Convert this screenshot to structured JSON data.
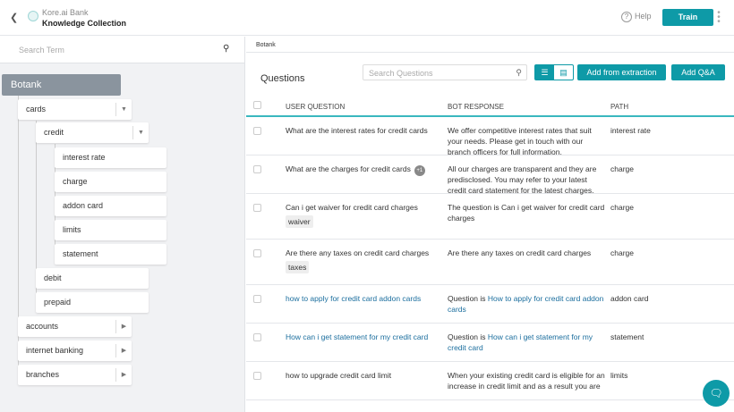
{
  "header": {
    "back_icon": "chevron-left-icon",
    "bank": "Kore.ai Bank",
    "collection": "Knowledge Collection",
    "help": "Help",
    "train": "Train"
  },
  "left": {
    "search_placeholder": "Search Term",
    "root": "Botank",
    "nodes": {
      "cards": "cards",
      "credit": "credit",
      "interest_rate": "interest rate",
      "charge": "charge",
      "addon_card": "addon card",
      "limits": "limits",
      "statement": "statement",
      "debit": "debit",
      "prepaid": "prepaid",
      "accounts": "accounts",
      "internet_banking": "internet banking",
      "branches": "branches"
    }
  },
  "main": {
    "breadcrumb": "Botank",
    "title": "Questions",
    "search_placeholder": "Search Questions",
    "add_extraction": "Add from extraction",
    "add_qa": "Add Q&A",
    "columns": [
      "USER QUESTION",
      "BOT RESPONSE",
      "PATH"
    ],
    "accent": "#0e9aa7",
    "rows": [
      {
        "q": "What are the interest rates for credit cards",
        "r": "We offer competitive interest rates that suit your needs. Please get in touch with our branch officers for full information.",
        "p": "interest rate"
      },
      {
        "q": "What are the charges for credit cards",
        "badge": "+1",
        "r": "All our charges are transparent and they are predisclosed. You may refer to your latest credit card statement for the latest charges.",
        "p": "charge"
      },
      {
        "q": "Can i get waiver for credit card charges",
        "tag": "waiver",
        "r": "The question is Can i get waiver for credit card charges",
        "p": "charge"
      },
      {
        "q": "Are there any taxes on credit card charges",
        "tag": "taxes",
        "r": "Are there any taxes on credit card charges",
        "p": "charge"
      },
      {
        "q": "how to apply for credit card addon cards",
        "r": "Question is How to apply for credit card addon cards",
        "p": "addon card",
        "link": true
      },
      {
        "q": "How can i get statement for my credit card",
        "r": "Question is How can i get statement for my credit card",
        "p": "statement",
        "link": true
      },
      {
        "q": "how to upgrade credit card limit",
        "r": "When your existing credit card is eligible for an increase in credit limit and as a result you are",
        "p": "limits"
      }
    ]
  }
}
